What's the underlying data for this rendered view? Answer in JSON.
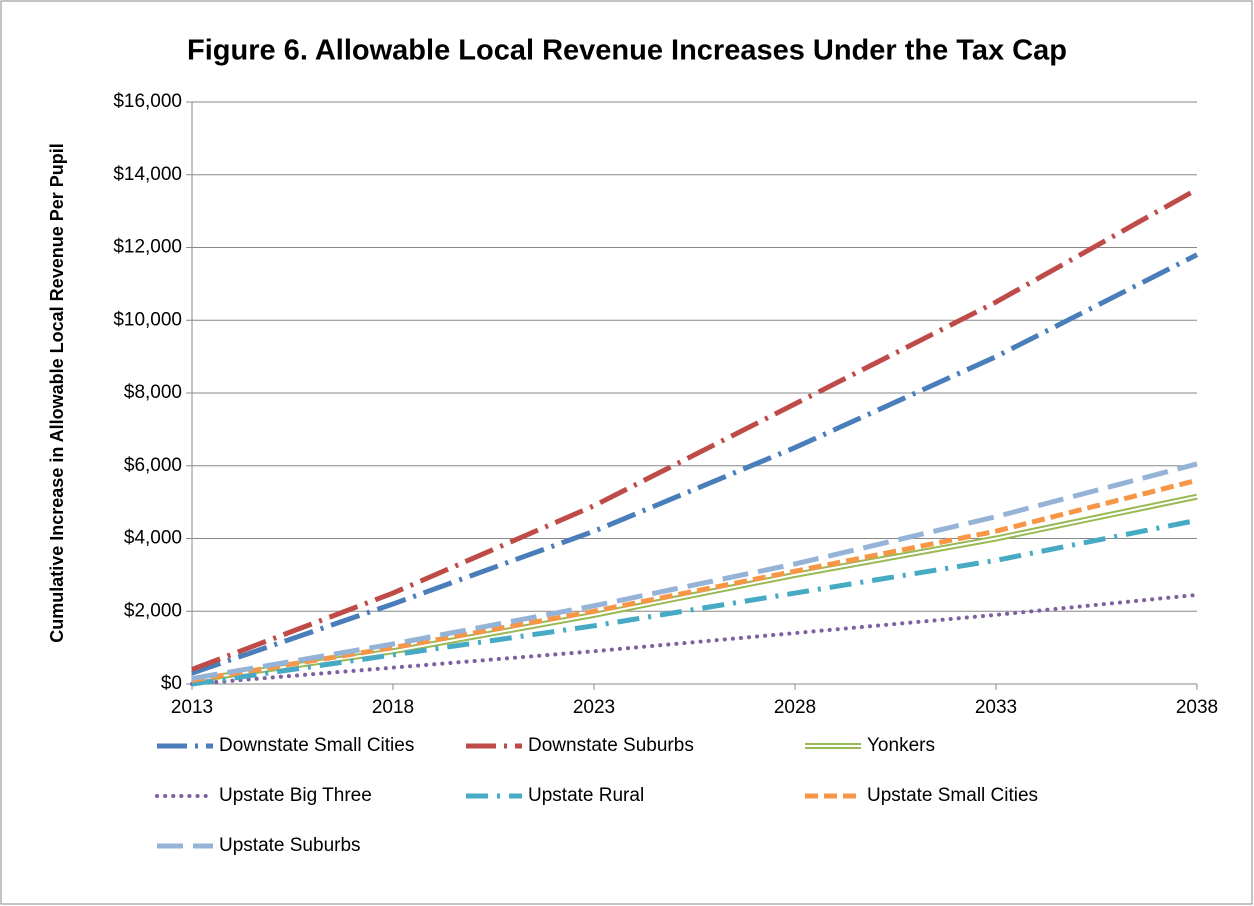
{
  "chart_data": {
    "type": "line",
    "title": "Figure 6. Allowable Local Revenue Increases Under the Tax Cap",
    "y_axis_label": "Cumulative Increase in Allowable Local Revenue Per Pupil",
    "x": [
      2013,
      2018,
      2023,
      2028,
      2033,
      2038
    ],
    "xlim": [
      2013,
      2038
    ],
    "xticks": [
      2013,
      2018,
      2023,
      2028,
      2033,
      2038
    ],
    "ylim": [
      0,
      16000
    ],
    "yticks": [
      {
        "value": 0,
        "label": "$0"
      },
      {
        "value": 2000,
        "label": "$2,000"
      },
      {
        "value": 4000,
        "label": "$4,000"
      },
      {
        "value": 6000,
        "label": "$6,000"
      },
      {
        "value": 8000,
        "label": "$8,000"
      },
      {
        "value": 10000,
        "label": "$10,000"
      },
      {
        "value": 12000,
        "label": "$12,000"
      },
      {
        "value": 14000,
        "label": "$14,000"
      },
      {
        "value": 16000,
        "label": "$16,000"
      }
    ],
    "grid": true,
    "series": [
      {
        "name": "Downstate Small Cities",
        "color": "#4a7ebb",
        "style": "longdashdot",
        "values": [
          300,
          2200,
          4200,
          6500,
          9000,
          11800
        ]
      },
      {
        "name": "Downstate Suburbs",
        "color": "#be4b48",
        "style": "longdashdot",
        "values": [
          400,
          2500,
          4900,
          7700,
          10500,
          13600
        ]
      },
      {
        "name": "Yonkers",
        "color": "#98b954",
        "style": "double",
        "values": [
          100,
          900,
          1900,
          3000,
          4000,
          5150
        ]
      },
      {
        "name": "Upstate Big Three",
        "color": "#7d60a0",
        "style": "dot",
        "values": [
          0,
          450,
          900,
          1400,
          1900,
          2450
        ]
      },
      {
        "name": "Upstate Rural",
        "color": "#46aac5",
        "style": "dashdot",
        "values": [
          0,
          800,
          1600,
          2500,
          3400,
          4500
        ]
      },
      {
        "name": "Upstate Small Cities",
        "color": "#f79646",
        "style": "dash",
        "values": [
          100,
          1000,
          2000,
          3100,
          4200,
          5600
        ]
      },
      {
        "name": "Upstate Suburbs",
        "color": "#95b3d7",
        "style": "longdash",
        "values": [
          150,
          1100,
          2150,
          3300,
          4600,
          6050
        ]
      }
    ]
  }
}
